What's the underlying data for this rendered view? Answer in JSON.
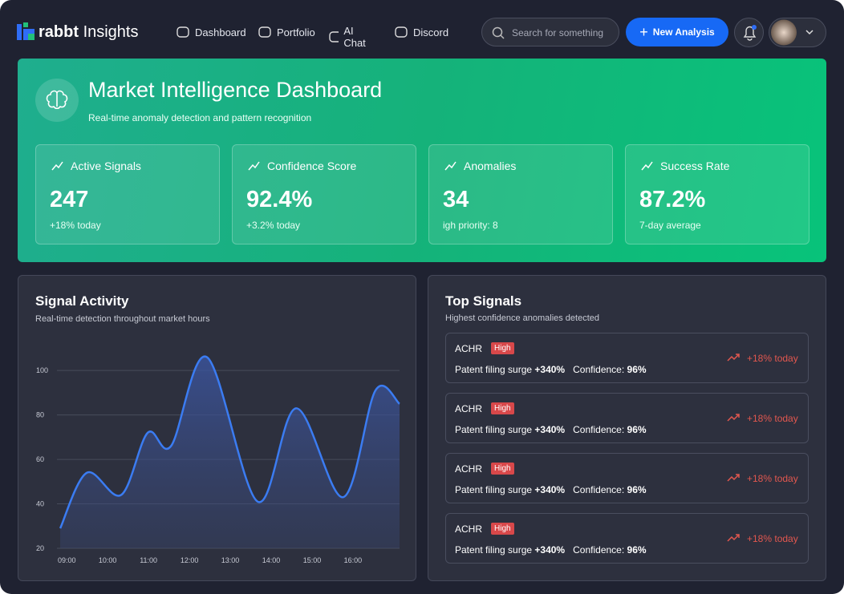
{
  "header": {
    "brand": "rabbt",
    "brand_suffix": "Insights",
    "nav": [
      "Dashboard",
      "Portfolio",
      "AI Chat",
      "Discord"
    ],
    "search_placeholder": "Search for something",
    "new_button": "New Analysis"
  },
  "hero": {
    "title": "Market Intelligence Dashboard",
    "subtitle": "Real-time anomaly detection and pattern recognition",
    "stats": [
      {
        "label": "Active Signals",
        "value": "247",
        "note": "+18% today"
      },
      {
        "label": "Confidence Score",
        "value": "92.4%",
        "note": "+3.2% today"
      },
      {
        "label": "Anomalies",
        "value": "34",
        "note": "igh priority: 8"
      },
      {
        "label": "Success Rate",
        "value": "87.2%",
        "note": "7-day average"
      }
    ]
  },
  "chart_data": {
    "type": "line",
    "title": "Signal Activity",
    "subtitle": "Real-time detection throughout market hours",
    "x": [
      8.84,
      9.49,
      10.33,
      10.98,
      11.55,
      12.43,
      13.67,
      14.61,
      15.76,
      16.55,
      17.14
    ],
    "series": [
      {
        "name": "Signals",
        "color": "#3b7cf2",
        "values": [
          29,
          54,
          44,
          72,
          66,
          106,
          41,
          83,
          43,
          91,
          85
        ]
      }
    ],
    "xlim": [
      8.76,
      17.14
    ],
    "xticks": [
      {
        "value": 9,
        "label": "09:00"
      },
      {
        "value": 10,
        "label": "10:00"
      },
      {
        "value": 11,
        "label": "11:00"
      },
      {
        "value": 12,
        "label": "12:00"
      },
      {
        "value": 13,
        "label": "13:00"
      },
      {
        "value": 14,
        "label": "14:00"
      },
      {
        "value": 15,
        "label": "15:00"
      },
      {
        "value": 16,
        "label": "16:00"
      }
    ],
    "ylim": [
      20,
      108
    ],
    "yticks": [
      20,
      40,
      60,
      80,
      100
    ],
    "grid": true
  },
  "top_signals": {
    "title": "Top Signals",
    "subtitle": "Highest confidence anomalies detected",
    "items": [
      {
        "ticker": "ACHR",
        "badge": "High",
        "description": "Patent filing surge",
        "change": "+340%",
        "confidence_label": "Confidence:",
        "confidence": "96%",
        "trend": "+18% today"
      },
      {
        "ticker": "ACHR",
        "badge": "High",
        "description": "Patent filing surge",
        "change": "+340%",
        "confidence_label": "Confidence:",
        "confidence": "96%",
        "trend": "+18% today"
      },
      {
        "ticker": "ACHR",
        "badge": "High",
        "description": "Patent filing surge",
        "change": "+340%",
        "confidence_label": "Confidence:",
        "confidence": "96%",
        "trend": "+18% today"
      },
      {
        "ticker": "ACHR",
        "badge": "High",
        "description": "Patent filing surge",
        "change": "+340%",
        "confidence_label": "Confidence:",
        "confidence": "96%",
        "trend": "+18% today"
      }
    ]
  }
}
